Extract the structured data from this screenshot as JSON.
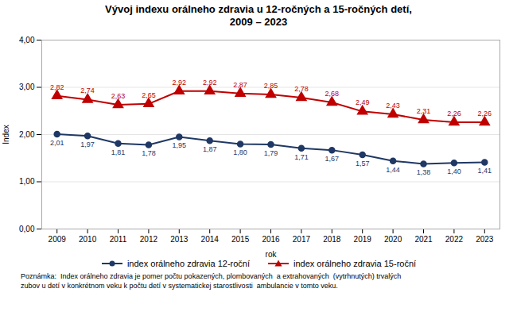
{
  "chart_data": {
    "type": "line",
    "title": "Vývoj indexu orálneho zdravia u 12-ročných a 15-ročných detí,\n2009 – 2023",
    "xlabel": "rok",
    "ylabel": "Index",
    "x": [
      2009,
      2010,
      2011,
      2012,
      2013,
      2014,
      2015,
      2016,
      2017,
      2018,
      2019,
      2020,
      2021,
      2022,
      2023
    ],
    "series": [
      {
        "name": "index orálneho zdravia 12-roční",
        "color": "#1f3864",
        "marker": "circle",
        "line_style": "solid",
        "values": [
          2.01,
          1.97,
          1.81,
          1.78,
          1.95,
          1.87,
          1.8,
          1.79,
          1.71,
          1.67,
          1.57,
          1.44,
          1.38,
          1.4,
          1.41
        ],
        "value_labels": [
          "2,01",
          "1,97",
          "1,81",
          "1,78",
          "1,95",
          "1,87",
          "1,80",
          "1,79",
          "1,71",
          "1,67",
          "1,57",
          "1,44",
          "1,38",
          "1,40",
          "1,41"
        ]
      },
      {
        "name": "index orálneho zdravia 15-roční",
        "color": "#c00000",
        "marker": "triangle",
        "line_style": "solid",
        "values": [
          2.82,
          2.74,
          2.63,
          2.65,
          2.92,
          2.92,
          2.87,
          2.85,
          2.78,
          2.68,
          2.49,
          2.43,
          2.31,
          2.26,
          2.26
        ],
        "value_labels": [
          "2,82",
          "2,74",
          "2,63",
          "2,65",
          "2,92",
          "2,92",
          "2,87",
          "2,85",
          "2,78",
          "2,68",
          "2,49",
          "2,43",
          "2,31",
          "2,26",
          "2,26"
        ]
      }
    ],
    "xlim": [
      2008.5,
      2023.5
    ],
    "xticks": [
      2009,
      2010,
      2011,
      2012,
      2013,
      2014,
      2015,
      2016,
      2017,
      2018,
      2019,
      2020,
      2021,
      2022,
      2023
    ],
    "ylim": [
      0.0,
      4.0
    ],
    "yticks": [
      {
        "value": 0.0,
        "label": "0,00"
      },
      {
        "value": 1.0,
        "label": "1,00"
      },
      {
        "value": 2.0,
        "label": "2,00"
      },
      {
        "value": 3.0,
        "label": "3,00"
      },
      {
        "value": 4.0,
        "label": "4,00"
      }
    ],
    "grid": true,
    "data_labels": true,
    "legend": "bottom",
    "annotations": [
      "Poznámka:  Index orálneho zdravia je pomer počtu pokazených, plombovaných  a extrahovaných  (vytrhnutých) trvalých",
      "zubov u detí v konkrétnom veku k počtu detí v systematickej starostlivosti  ambulancie v tomto veku."
    ]
  }
}
